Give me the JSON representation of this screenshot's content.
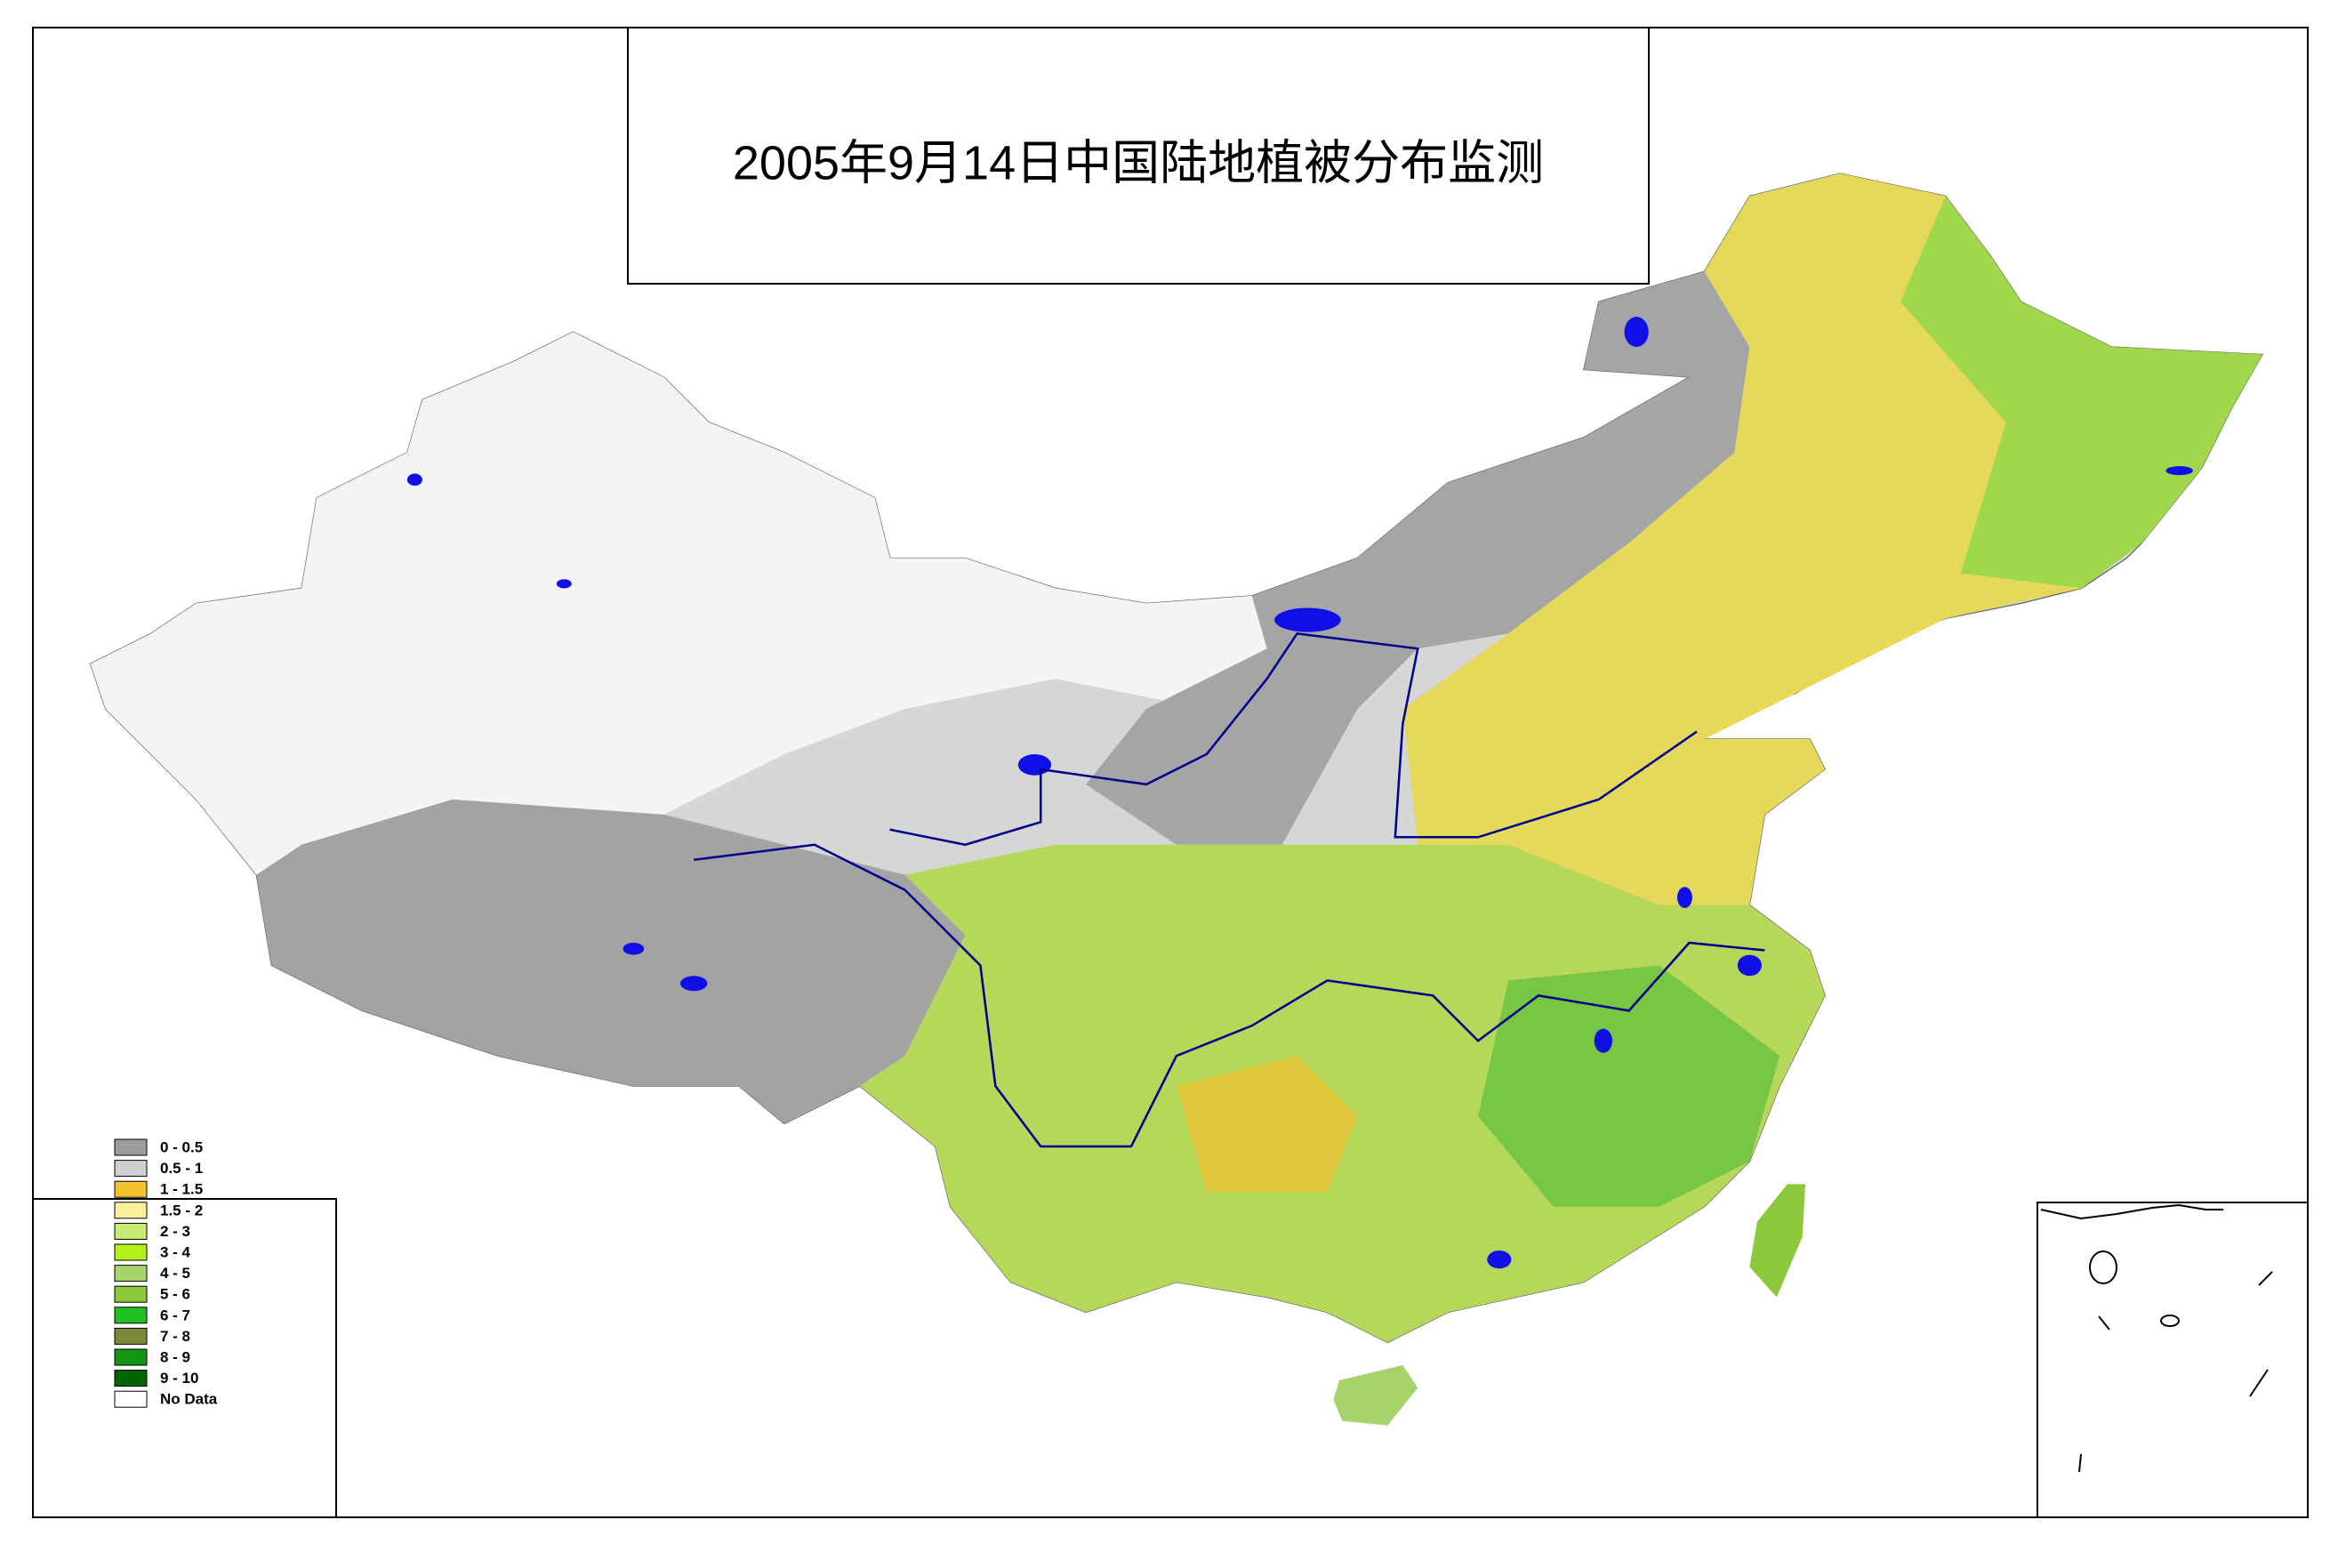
{
  "title": "2005年9月14日中国陆地植被分布监测",
  "legend": {
    "items": [
      {
        "label": "0 - 0.5",
        "color": "#9c9c9c"
      },
      {
        "label": "0.5 - 1",
        "color": "#cfcfcf"
      },
      {
        "label": "1 - 1.5",
        "color": "#f2c12e"
      },
      {
        "label": "1.5 - 2",
        "color": "#fbef9a"
      },
      {
        "label": "2 - 3",
        "color": "#c8ec72"
      },
      {
        "label": "3 - 4",
        "color": "#b4f01c"
      },
      {
        "label": "4 - 5",
        "color": "#a7d46a"
      },
      {
        "label": "5 - 6",
        "color": "#8cc83c"
      },
      {
        "label": "6 - 7",
        "color": "#1fc01f"
      },
      {
        "label": "7 - 8",
        "color": "#7a8a3a"
      },
      {
        "label": "8 - 9",
        "color": "#149614"
      },
      {
        "label": "9 - 10",
        "color": "#006400"
      },
      {
        "label": "No Data",
        "color": "#ffffff"
      }
    ]
  }
}
